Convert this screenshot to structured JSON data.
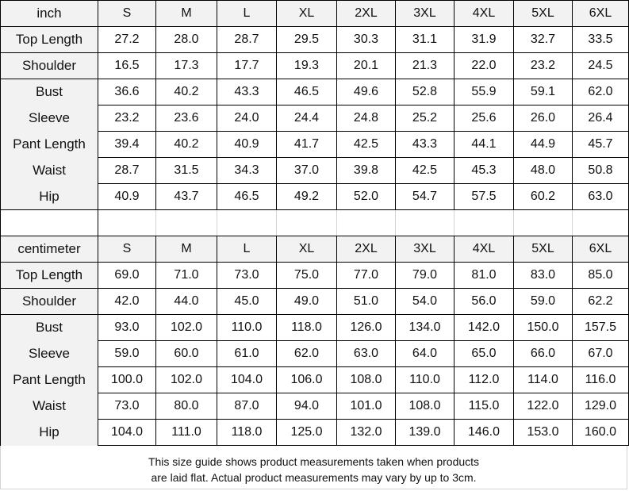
{
  "sizes": [
    "S",
    "M",
    "L",
    "XL",
    "2XL",
    "3XL",
    "4XL",
    "5XL",
    "6XL"
  ],
  "inch": {
    "unit": "inch",
    "rows": [
      {
        "label": "Top Length",
        "values": [
          "27.2",
          "28.0",
          "28.7",
          "29.5",
          "30.3",
          "31.1",
          "31.9",
          "32.7",
          "33.5"
        ]
      },
      {
        "label": "Shoulder",
        "values": [
          "16.5",
          "17.3",
          "17.7",
          "19.3",
          "20.1",
          "21.3",
          "22.0",
          "23.2",
          "24.5"
        ]
      },
      {
        "label": "Bust",
        "values": [
          "36.6",
          "40.2",
          "43.3",
          "46.5",
          "49.6",
          "52.8",
          "55.9",
          "59.1",
          "62.0"
        ]
      },
      {
        "label": "Sleeve",
        "values": [
          "23.2",
          "23.6",
          "24.0",
          "24.4",
          "24.8",
          "25.2",
          "25.6",
          "26.0",
          "26.4"
        ]
      },
      {
        "label": "Pant Length",
        "values": [
          "39.4",
          "40.2",
          "40.9",
          "41.7",
          "42.5",
          "43.3",
          "44.1",
          "44.9",
          "45.7"
        ]
      },
      {
        "label": "Waist",
        "values": [
          "28.7",
          "31.5",
          "34.3",
          "37.0",
          "39.8",
          "42.5",
          "45.3",
          "48.0",
          "50.8"
        ]
      },
      {
        "label": "Hip",
        "values": [
          "40.9",
          "43.7",
          "46.5",
          "49.2",
          "52.0",
          "54.7",
          "57.5",
          "60.2",
          "63.0"
        ]
      }
    ]
  },
  "centimeter": {
    "unit": "centimeter",
    "rows": [
      {
        "label": "Top Length",
        "values": [
          "69.0",
          "71.0",
          "73.0",
          "75.0",
          "77.0",
          "79.0",
          "81.0",
          "83.0",
          "85.0"
        ]
      },
      {
        "label": "Shoulder",
        "values": [
          "42.0",
          "44.0",
          "45.0",
          "49.0",
          "51.0",
          "54.0",
          "56.0",
          "59.0",
          "62.2"
        ]
      },
      {
        "label": "Bust",
        "values": [
          "93.0",
          "102.0",
          "110.0",
          "118.0",
          "126.0",
          "134.0",
          "142.0",
          "150.0",
          "157.5"
        ]
      },
      {
        "label": "Sleeve",
        "values": [
          "59.0",
          "60.0",
          "61.0",
          "62.0",
          "63.0",
          "64.0",
          "65.0",
          "66.0",
          "67.0"
        ]
      },
      {
        "label": "Pant Length",
        "values": [
          "100.0",
          "102.0",
          "104.0",
          "106.0",
          "108.0",
          "110.0",
          "112.0",
          "114.0",
          "116.0"
        ]
      },
      {
        "label": "Waist",
        "values": [
          "73.0",
          "80.0",
          "87.0",
          "94.0",
          "101.0",
          "108.0",
          "115.0",
          "122.0",
          "129.0"
        ]
      },
      {
        "label": "Hip",
        "values": [
          "104.0",
          "111.0",
          "118.0",
          "125.0",
          "132.0",
          "139.0",
          "146.0",
          "153.0",
          "160.0"
        ]
      }
    ]
  },
  "note": {
    "line1": "This size guide shows product measurements taken when products",
    "line2": "are laid flat. Actual product measurements may vary by up to 3cm."
  }
}
